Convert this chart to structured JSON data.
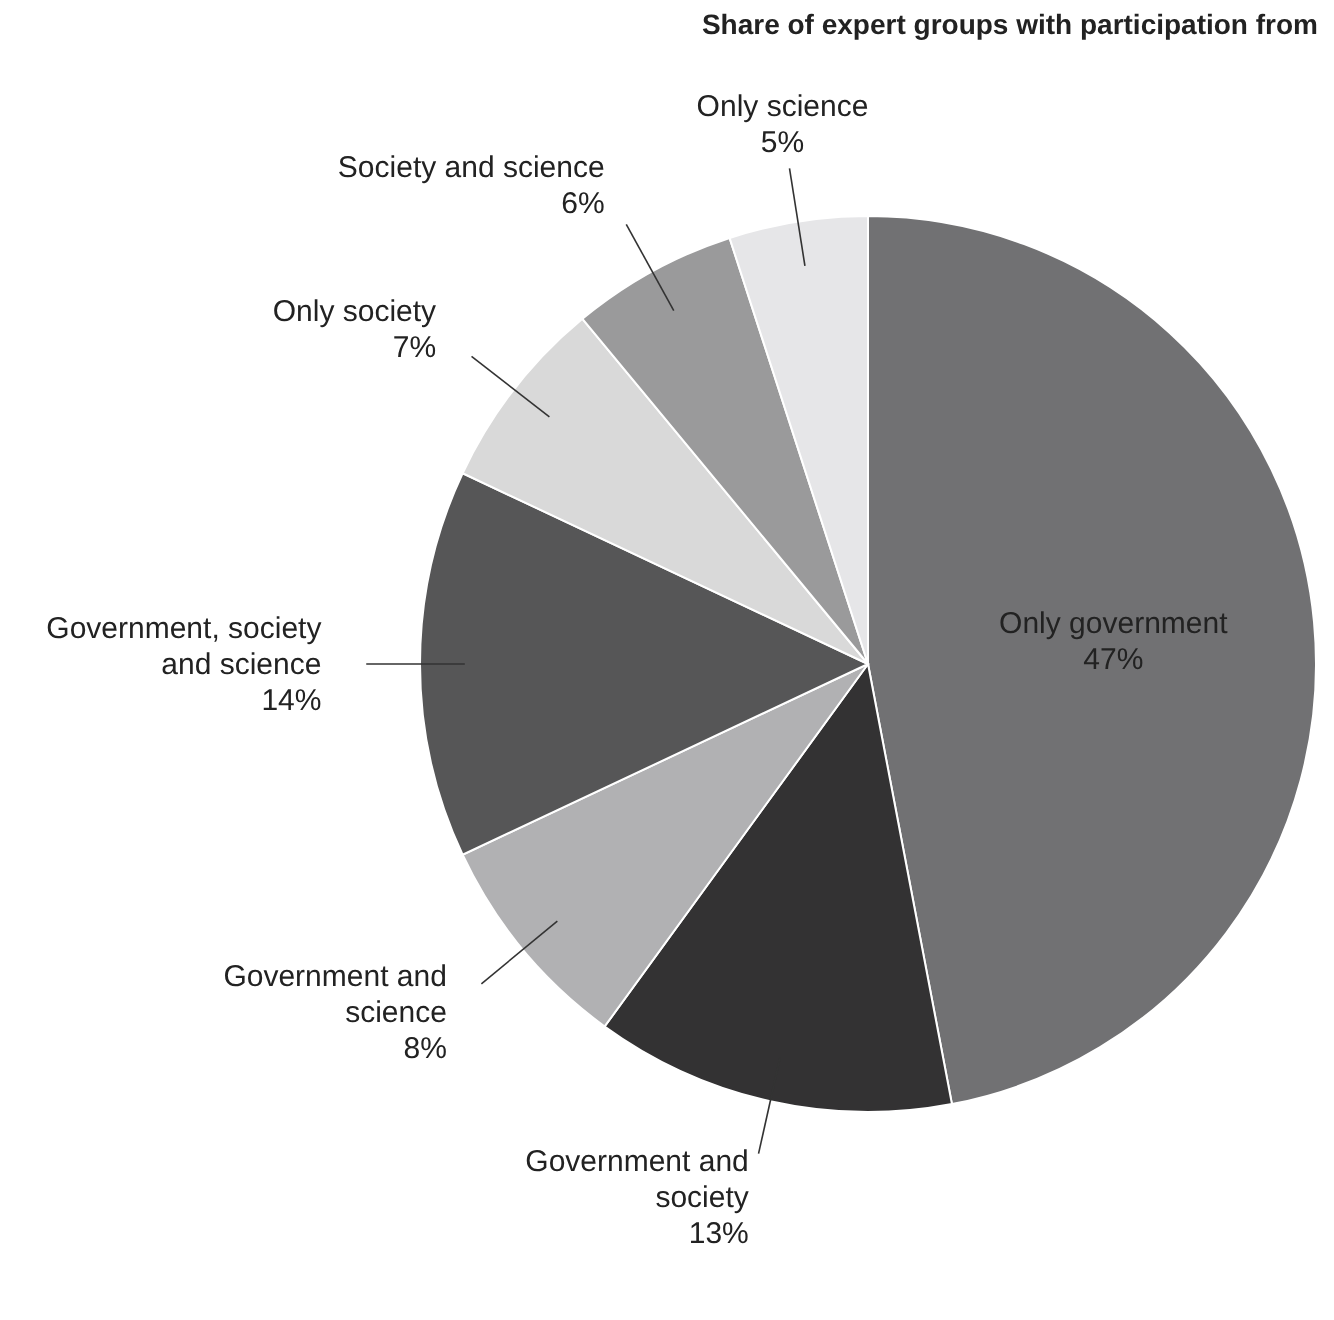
{
  "chart_data": {
    "type": "pie",
    "title": "Share of expert groups with participation from",
    "categories": [
      "Only government",
      "Government and society",
      "Government and science",
      "Government, society and science",
      "Only society",
      "Society and science",
      "Only science"
    ],
    "values": [
      47,
      13,
      8,
      14,
      7,
      6,
      5
    ],
    "colors": [
      "#717173",
      "#333233",
      "#b1b1b3",
      "#565657",
      "#d9d9d9",
      "#9a9a9b",
      "#e6e6e8"
    ],
    "value_labels": [
      "47%",
      "13%",
      "8%",
      "14%",
      "7%",
      "6%",
      "5%"
    ],
    "legend": false
  }
}
